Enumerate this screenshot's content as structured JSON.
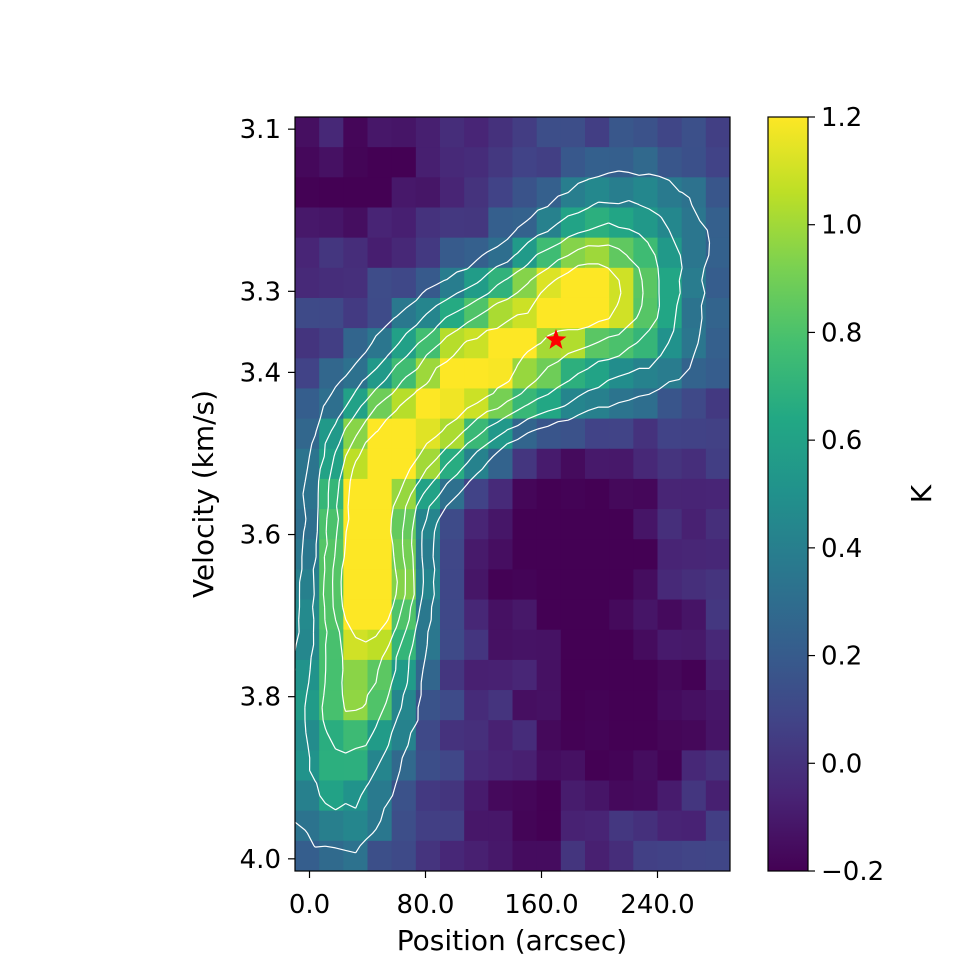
{
  "chart_data": {
    "type": "heatmap",
    "title": "",
    "xlabel": "Position (arcsec)",
    "ylabel": "Velocity (km/s)",
    "colorbar_label": "K",
    "colormap": "viridis",
    "xlim": [
      -10,
      290
    ],
    "ylim": [
      4.015,
      3.085
    ],
    "x_ticks": [
      0,
      80,
      160,
      240
    ],
    "x_tick_labels": [
      "0.0",
      "80.0",
      "160.0",
      "240.0"
    ],
    "y_ticks": [
      3.1,
      3.3,
      3.4,
      3.6,
      3.8,
      4.0
    ],
    "y_tick_labels": [
      "3.1",
      "3.3",
      "3.4",
      "3.6",
      "3.8",
      "4.0"
    ],
    "colorbar_range": [
      -0.2,
      1.2
    ],
    "colorbar_ticks": [
      1.2,
      1.0,
      0.8,
      0.6,
      0.4,
      0.2,
      0.0,
      -0.2
    ],
    "colorbar_tick_labels": [
      "1.2",
      "1.0",
      "0.8",
      "0.6",
      "0.4",
      "0.2",
      "0.0",
      "−0.2"
    ],
    "grid": false,
    "contours": true,
    "marker": {
      "symbol": "star",
      "color": "#ff0000",
      "x": 170,
      "y": 3.36
    }
  }
}
